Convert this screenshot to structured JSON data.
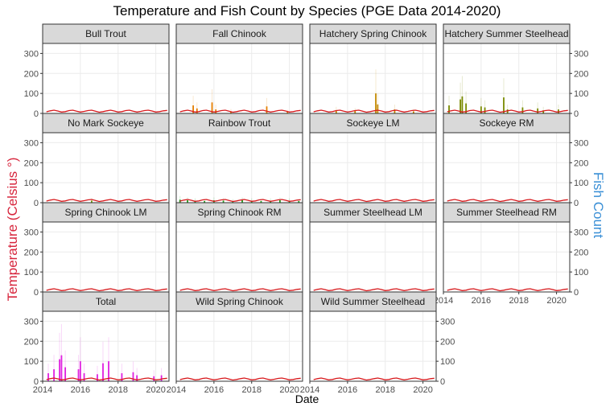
{
  "chart_data": {
    "type": "faceted-bar-line",
    "title": "Temperature and Fish Count by Species (PGE Data 2014-2020)",
    "xlabel": "Date",
    "ylabel_left": "Temperature (Celsius °)",
    "ylabel_right": "Fish Count",
    "ylim": [
      0,
      350
    ],
    "xlim": [
      2014.0,
      2020.7
    ],
    "y_ticks": [
      0,
      100,
      200,
      300
    ],
    "x_ticks": [
      2014,
      2016,
      2018,
      2020
    ],
    "x_tick_labels": [
      "2014",
      "2016",
      "2018",
      "2020"
    ],
    "grid": true,
    "temperature_color": "#d7191c",
    "temperature_series": {
      "x": [
        2014.2,
        2014.4,
        2014.6,
        2014.8,
        2015.0,
        2015.2,
        2015.4,
        2015.6,
        2015.8,
        2016.0,
        2016.2,
        2016.4,
        2016.6,
        2016.8,
        2017.0,
        2017.2,
        2017.4,
        2017.6,
        2017.8,
        2018.0,
        2018.2,
        2018.4,
        2018.6,
        2018.8,
        2019.0,
        2019.2,
        2019.4,
        2019.6,
        2019.8,
        2020.0,
        2020.2,
        2020.4,
        2020.6
      ],
      "y": [
        8,
        13,
        16,
        12,
        7,
        9,
        14,
        16,
        11,
        7,
        10,
        14,
        16,
        11,
        6,
        9,
        13,
        16,
        12,
        7,
        9,
        14,
        16,
        11,
        7,
        10,
        14,
        16,
        12,
        7,
        9,
        13,
        15
      ]
    },
    "panels": [
      {
        "name": "Bull Trout",
        "color": "#999999",
        "bars": [
          {
            "x": 2016.7,
            "y": 2
          },
          {
            "x": 2019.0,
            "y": 1
          }
        ]
      },
      {
        "name": "Fall Chinook",
        "color": "#e67e00",
        "bars": [
          {
            "x": 2014.9,
            "y": 40
          },
          {
            "x": 2015.1,
            "y": 25
          },
          {
            "x": 2015.9,
            "y": 55
          },
          {
            "x": 2016.1,
            "y": 20
          },
          {
            "x": 2016.9,
            "y": 10
          },
          {
            "x": 2018.8,
            "y": 35
          },
          {
            "x": 2019.9,
            "y": 8
          }
        ]
      },
      {
        "name": "Hatchery Spring Chinook",
        "color": "#c48a00",
        "bars": [
          {
            "x": 2015.4,
            "y": 15
          },
          {
            "x": 2016.4,
            "y": 12
          },
          {
            "x": 2017.5,
            "y": 100
          },
          {
            "x": 2017.6,
            "y": 45
          },
          {
            "x": 2018.5,
            "y": 20
          },
          {
            "x": 2019.5,
            "y": 10
          }
        ]
      },
      {
        "name": "Hatchery Summer Steelhead",
        "color": "#7a8b00",
        "bars": [
          {
            "x": 2014.3,
            "y": 40
          },
          {
            "x": 2014.9,
            "y": 70
          },
          {
            "x": 2015.0,
            "y": 85
          },
          {
            "x": 2015.2,
            "y": 50
          },
          {
            "x": 2016.0,
            "y": 35
          },
          {
            "x": 2016.2,
            "y": 30
          },
          {
            "x": 2017.2,
            "y": 80
          },
          {
            "x": 2017.4,
            "y": 20
          },
          {
            "x": 2018.2,
            "y": 30
          },
          {
            "x": 2019.0,
            "y": 25
          },
          {
            "x": 2019.3,
            "y": 15
          },
          {
            "x": 2020.1,
            "y": 20
          }
        ]
      },
      {
        "name": "No Mark Sockeye",
        "color": "#6b9a00",
        "bars": [
          {
            "x": 2016.6,
            "y": 10
          }
        ]
      },
      {
        "name": "Rainbow Trout",
        "color": "#1a9e1a",
        "bars": [
          {
            "x": 2014.2,
            "y": 15
          },
          {
            "x": 2014.6,
            "y": 12
          },
          {
            "x": 2015.0,
            "y": 10
          },
          {
            "x": 2015.5,
            "y": 8
          },
          {
            "x": 2016.0,
            "y": 12
          },
          {
            "x": 2016.5,
            "y": 10
          },
          {
            "x": 2017.0,
            "y": 8
          },
          {
            "x": 2017.5,
            "y": 12
          },
          {
            "x": 2018.0,
            "y": 10
          },
          {
            "x": 2018.5,
            "y": 8
          },
          {
            "x": 2019.0,
            "y": 10
          },
          {
            "x": 2019.5,
            "y": 12
          },
          {
            "x": 2020.0,
            "y": 10
          },
          {
            "x": 2020.5,
            "y": 8
          }
        ]
      },
      {
        "name": "Sockeye LM",
        "color": "#00a99d",
        "bars": []
      },
      {
        "name": "Sockeye RM",
        "color": "#00a8c0",
        "bars": [
          {
            "x": 2018.8,
            "y": 2
          }
        ]
      },
      {
        "name": "Spring Chinook LM",
        "color": "#00a9e0",
        "bars": []
      },
      {
        "name": "Spring Chinook RM",
        "color": "#3b82f6",
        "bars": []
      },
      {
        "name": "Summer Steelhead LM",
        "color": "#7b61ff",
        "bars": []
      },
      {
        "name": "Summer Steelhead RM",
        "color": "#b45ce6",
        "bars": []
      },
      {
        "name": "Total",
        "color": "#e020e0",
        "bars": [
          {
            "x": 2014.3,
            "y": 40
          },
          {
            "x": 2014.6,
            "y": 60
          },
          {
            "x": 2014.9,
            "y": 110
          },
          {
            "x": 2015.0,
            "y": 130
          },
          {
            "x": 2015.2,
            "y": 70
          },
          {
            "x": 2015.9,
            "y": 60
          },
          {
            "x": 2016.0,
            "y": 100
          },
          {
            "x": 2016.2,
            "y": 40
          },
          {
            "x": 2016.9,
            "y": 35
          },
          {
            "x": 2017.2,
            "y": 90
          },
          {
            "x": 2017.5,
            "y": 100
          },
          {
            "x": 2018.2,
            "y": 40
          },
          {
            "x": 2018.8,
            "y": 45
          },
          {
            "x": 2019.0,
            "y": 30
          },
          {
            "x": 2019.9,
            "y": 25
          },
          {
            "x": 2020.3,
            "y": 30
          }
        ]
      },
      {
        "name": "Wild Spring Chinook",
        "color": "#ff4fb0",
        "bars": []
      },
      {
        "name": "Wild Summer Steelhead",
        "color": "#ff4f7a",
        "bars": []
      }
    ]
  }
}
